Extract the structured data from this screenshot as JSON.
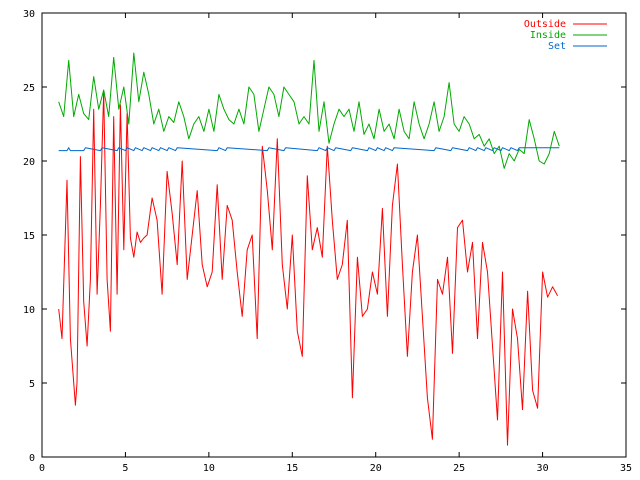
{
  "chart_data": {
    "type": "line",
    "title": "",
    "xlabel": "",
    "ylabel": "",
    "xlim": [
      0,
      35
    ],
    "ylim": [
      0,
      30
    ],
    "xticks": [
      0,
      5,
      10,
      15,
      20,
      25,
      30,
      35
    ],
    "yticks": [
      0,
      5,
      10,
      15,
      20,
      25,
      30
    ],
    "grid": false,
    "legend": "top-right",
    "series": [
      {
        "name": "Outside",
        "color": "#ff0000",
        "x": [
          1.0,
          1.2,
          1.5,
          1.7,
          2.0,
          2.1,
          2.3,
          2.5,
          2.7,
          2.9,
          3.1,
          3.3,
          3.5,
          3.7,
          3.9,
          4.1,
          4.3,
          4.5,
          4.7,
          4.9,
          5.1,
          5.3,
          5.5,
          5.7,
          5.9,
          6.1,
          6.3,
          6.6,
          6.9,
          7.2,
          7.5,
          7.8,
          8.1,
          8.4,
          8.7,
          9.0,
          9.3,
          9.6,
          9.9,
          10.2,
          10.5,
          10.8,
          11.1,
          11.4,
          11.7,
          12.0,
          12.3,
          12.6,
          12.9,
          13.2,
          13.5,
          13.8,
          14.1,
          14.4,
          14.7,
          15.0,
          15.3,
          15.6,
          15.9,
          16.2,
          16.5,
          16.8,
          17.1,
          17.4,
          17.7,
          18.0,
          18.3,
          18.6,
          18.9,
          19.2,
          19.5,
          19.8,
          20.1,
          20.4,
          20.7,
          21.0,
          21.3,
          21.6,
          21.9,
          22.2,
          22.5,
          22.8,
          23.1,
          23.4,
          23.7,
          24.0,
          24.3,
          24.6,
          24.9,
          25.2,
          25.5,
          25.8,
          26.1,
          26.4,
          26.7,
          27.0,
          27.3,
          27.6,
          27.9,
          28.2,
          28.5,
          28.8,
          29.1,
          29.4,
          29.7,
          30.0,
          30.3,
          30.6,
          30.9
        ],
        "values": [
          10.0,
          8.0,
          18.7,
          8.0,
          3.5,
          5.0,
          20.3,
          10.5,
          7.5,
          12.0,
          23.5,
          11.0,
          17.0,
          24.7,
          12.0,
          8.5,
          23.0,
          11.0,
          23.8,
          14.0,
          23.2,
          14.8,
          13.5,
          15.2,
          14.5,
          14.8,
          15.0,
          17.5,
          16.0,
          11.0,
          19.3,
          16.5,
          13.0,
          20.0,
          12.0,
          15.0,
          18.0,
          13.0,
          11.5,
          12.5,
          18.4,
          12.0,
          17.0,
          16.0,
          12.5,
          9.5,
          14.0,
          15.0,
          8.0,
          21.0,
          18.0,
          14.0,
          21.5,
          13.0,
          10.0,
          15.0,
          8.5,
          6.8,
          19.0,
          14.0,
          15.5,
          13.5,
          21.0,
          16.0,
          12.0,
          13.0,
          16.0,
          4.0,
          13.5,
          9.5,
          10.0,
          12.5,
          11.0,
          16.8,
          9.5,
          17.0,
          19.8,
          13.0,
          6.8,
          12.5,
          15.0,
          9.5,
          4.0,
          1.2,
          12.0,
          11.0,
          13.5,
          7.0,
          15.5,
          16.0,
          12.5,
          14.5,
          8.0,
          14.5,
          12.5,
          7.5,
          2.5,
          12.5,
          0.8,
          10.0,
          8.0,
          3.2,
          11.2,
          4.5,
          3.3,
          12.5,
          10.8,
          11.5,
          10.9
        ]
      },
      {
        "name": "Inside",
        "color": "#00aa00",
        "x": [
          1.0,
          1.3,
          1.6,
          1.9,
          2.2,
          2.5,
          2.8,
          3.1,
          3.4,
          3.7,
          4.0,
          4.3,
          4.6,
          4.9,
          5.2,
          5.5,
          5.8,
          6.1,
          6.4,
          6.7,
          7.0,
          7.3,
          7.6,
          7.9,
          8.2,
          8.5,
          8.8,
          9.1,
          9.4,
          9.7,
          10.0,
          10.3,
          10.6,
          10.9,
          11.2,
          11.5,
          11.8,
          12.1,
          12.4,
          12.7,
          13.0,
          13.3,
          13.6,
          13.9,
          14.2,
          14.5,
          14.8,
          15.1,
          15.4,
          15.7,
          16.0,
          16.3,
          16.6,
          16.9,
          17.2,
          17.5,
          17.8,
          18.1,
          18.4,
          18.7,
          19.0,
          19.3,
          19.6,
          19.9,
          20.2,
          20.5,
          20.8,
          21.1,
          21.4,
          21.7,
          22.0,
          22.3,
          22.6,
          22.9,
          23.2,
          23.5,
          23.8,
          24.1,
          24.4,
          24.7,
          25.0,
          25.3,
          25.6,
          25.9,
          26.2,
          26.5,
          26.8,
          27.1,
          27.4,
          27.7,
          28.0,
          28.3,
          28.6,
          28.9,
          29.2,
          29.5,
          29.8,
          30.1,
          30.4,
          30.7,
          31.0
        ],
        "values": [
          24.0,
          23.0,
          26.8,
          23.0,
          24.5,
          23.2,
          22.8,
          25.7,
          23.5,
          24.8,
          23.0,
          27.0,
          23.5,
          25.0,
          22.5,
          27.3,
          24.0,
          26.0,
          24.5,
          22.5,
          23.5,
          22.0,
          23.0,
          22.6,
          24.0,
          23.0,
          21.5,
          22.5,
          23.0,
          22.0,
          23.5,
          22.0,
          24.5,
          23.5,
          22.8,
          22.5,
          23.5,
          22.5,
          25.0,
          24.5,
          22.0,
          23.5,
          25.0,
          24.5,
          23.0,
          25.0,
          24.5,
          24.0,
          22.5,
          23.0,
          22.5,
          26.8,
          22.0,
          24.0,
          21.2,
          22.5,
          23.5,
          23.0,
          23.5,
          22.0,
          24.0,
          21.8,
          22.5,
          21.5,
          23.5,
          22.0,
          22.5,
          21.5,
          23.5,
          22.0,
          21.5,
          24.0,
          22.5,
          21.5,
          22.5,
          24.0,
          22.0,
          23.0,
          25.3,
          22.5,
          22.0,
          23.0,
          22.5,
          21.5,
          21.8,
          21.0,
          21.5,
          20.5,
          21.0,
          19.5,
          20.5,
          20.0,
          20.8,
          20.5,
          22.8,
          21.5,
          20.0,
          19.8,
          20.5,
          22.0,
          21.0
        ]
      },
      {
        "name": "Set",
        "color": "#0066cc",
        "x": [
          1.0,
          1.5,
          1.6,
          1.7,
          2.5,
          2.6,
          3.5,
          3.6,
          4.5,
          4.6,
          5.0,
          5.1,
          5.5,
          5.6,
          6.0,
          6.1,
          6.5,
          6.6,
          7.0,
          7.1,
          7.5,
          7.6,
          8.0,
          8.1,
          10.5,
          10.6,
          11.0,
          11.1,
          13.5,
          13.6,
          14.5,
          14.6,
          16.5,
          16.6,
          17.0,
          17.1,
          17.5,
          17.6,
          18.5,
          18.6,
          19.5,
          19.6,
          20.0,
          20.1,
          20.5,
          20.6,
          21.0,
          21.1,
          23.5,
          23.6,
          24.5,
          24.6,
          25.5,
          25.6,
          26.0,
          26.1,
          26.5,
          26.6,
          27.0,
          27.1,
          27.5,
          27.6,
          28.0,
          28.1,
          28.5,
          28.6,
          29.0,
          31.0
        ],
        "values": [
          20.7,
          20.7,
          20.9,
          20.7,
          20.7,
          20.9,
          20.7,
          20.9,
          20.7,
          20.9,
          20.7,
          20.9,
          20.7,
          20.9,
          20.7,
          20.9,
          20.7,
          20.9,
          20.7,
          20.9,
          20.7,
          20.9,
          20.7,
          20.9,
          20.7,
          20.9,
          20.7,
          20.9,
          20.7,
          20.9,
          20.7,
          20.9,
          20.7,
          20.9,
          20.7,
          20.9,
          20.7,
          20.9,
          20.7,
          20.9,
          20.7,
          20.9,
          20.7,
          20.9,
          20.7,
          20.9,
          20.7,
          20.9,
          20.7,
          20.9,
          20.7,
          20.9,
          20.7,
          20.9,
          20.7,
          20.9,
          20.7,
          20.9,
          20.7,
          20.9,
          20.7,
          20.9,
          20.7,
          20.9,
          20.7,
          20.9,
          20.9,
          20.9
        ]
      }
    ]
  }
}
